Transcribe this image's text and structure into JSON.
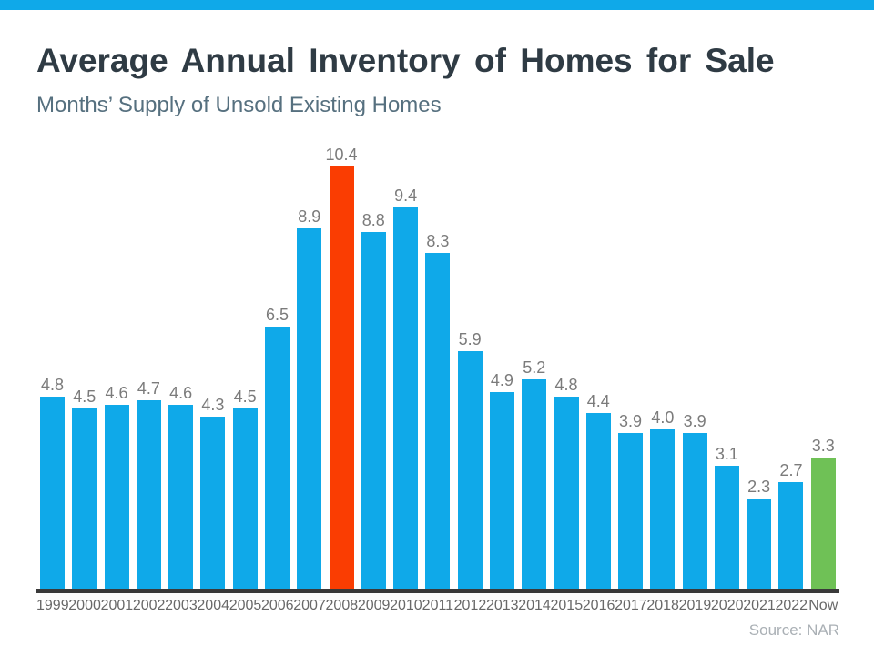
{
  "page": {
    "title": "Average Annual Inventory of Homes for Sale",
    "subtitle": "Months’ Supply of Unsold Existing Homes",
    "source": "Source: NAR"
  },
  "colors": {
    "top_stripe": "#0FA9E9",
    "bar_default": "#0FA9E9",
    "bar_highlight_2008": "#FA3D02",
    "bar_highlight_now": "#6FC156",
    "axis_line": "#3A3A3A",
    "title_text": "#2F3B44",
    "subtitle_text": "#56707F",
    "value_label_text": "#7B7B7B",
    "axis_label_text": "#686868",
    "source_text": "#AAB0B5"
  },
  "chart_data": {
    "type": "bar",
    "title": "Average Annual Inventory of Homes for Sale",
    "subtitle": "Months’ Supply of Unsold Existing Homes",
    "categories": [
      "1999",
      "2000",
      "2001",
      "2002",
      "2003",
      "2004",
      "2005",
      "2006",
      "2007",
      "2008",
      "2009",
      "2010",
      "2011",
      "2012",
      "2013",
      "2014",
      "2015",
      "2016",
      "2017",
      "2018",
      "2019",
      "2020",
      "2021",
      "2022",
      "Now"
    ],
    "values": [
      4.8,
      4.5,
      4.6,
      4.7,
      4.6,
      4.3,
      4.5,
      6.5,
      8.9,
      10.4,
      8.8,
      9.4,
      8.3,
      5.9,
      4.9,
      5.2,
      4.8,
      4.4,
      3.9,
      4.0,
      3.9,
      3.1,
      2.3,
      2.7,
      3.3
    ],
    "value_labels": [
      "4.8",
      "4.5",
      "4.6",
      "4.7",
      "4.6",
      "4.3",
      "4.5",
      "6.5",
      "8.9",
      "10.4",
      "8.8",
      "9.4",
      "8.3",
      "5.9",
      "4.9",
      "5.2",
      "4.8",
      "4.4",
      "3.9",
      "4.0",
      "3.9",
      "3.1",
      "2.3",
      "2.7",
      "3.3"
    ],
    "highlights": [
      {
        "category": "2008",
        "color": "#FA3D02"
      },
      {
        "category": "Now",
        "color": "#6FC156"
      }
    ],
    "xlabel": "",
    "ylabel": "",
    "ylim": [
      0,
      10.4
    ],
    "grid": false,
    "legend": false,
    "data_labels": true,
    "source": "Source: NAR"
  }
}
